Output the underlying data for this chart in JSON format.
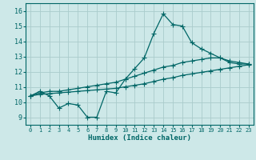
{
  "xlabel": "Humidex (Indice chaleur)",
  "background_color": "#cde8e8",
  "grid_color": "#aacccc",
  "line_color": "#006666",
  "xlim": [
    -0.5,
    23.5
  ],
  "ylim": [
    8.5,
    16.5
  ],
  "xticks": [
    0,
    1,
    2,
    3,
    4,
    5,
    6,
    7,
    8,
    9,
    10,
    11,
    12,
    13,
    14,
    15,
    16,
    17,
    18,
    19,
    20,
    21,
    22,
    23
  ],
  "yticks": [
    9,
    10,
    11,
    12,
    13,
    14,
    15,
    16
  ],
  "line1_x": [
    0,
    1,
    2,
    3,
    4,
    5,
    6,
    7,
    8,
    9,
    10,
    11,
    12,
    13,
    14,
    15,
    16,
    17,
    18,
    19,
    20,
    21,
    22,
    23
  ],
  "line1_y": [
    10.4,
    10.7,
    10.4,
    9.6,
    9.9,
    9.8,
    9.0,
    9.0,
    10.7,
    10.6,
    11.5,
    12.2,
    12.9,
    14.5,
    15.8,
    15.1,
    15.0,
    13.9,
    13.5,
    13.2,
    12.9,
    12.6,
    12.5,
    12.5
  ],
  "line2_x": [
    0,
    1,
    2,
    3,
    4,
    5,
    6,
    7,
    8,
    9,
    10,
    11,
    12,
    13,
    14,
    15,
    16,
    17,
    18,
    19,
    20,
    21,
    22,
    23
  ],
  "line2_y": [
    10.4,
    10.6,
    10.7,
    10.7,
    10.8,
    10.9,
    11.0,
    11.1,
    11.2,
    11.3,
    11.5,
    11.7,
    11.9,
    12.1,
    12.3,
    12.4,
    12.6,
    12.7,
    12.8,
    12.9,
    12.9,
    12.7,
    12.6,
    12.5
  ],
  "line3_x": [
    0,
    1,
    2,
    3,
    4,
    5,
    6,
    7,
    8,
    9,
    10,
    11,
    12,
    13,
    14,
    15,
    16,
    17,
    18,
    19,
    20,
    21,
    22,
    23
  ],
  "line3_y": [
    10.4,
    10.5,
    10.55,
    10.6,
    10.65,
    10.7,
    10.75,
    10.8,
    10.85,
    10.9,
    11.0,
    11.1,
    11.2,
    11.35,
    11.5,
    11.6,
    11.75,
    11.85,
    11.95,
    12.05,
    12.15,
    12.25,
    12.35,
    12.45
  ]
}
